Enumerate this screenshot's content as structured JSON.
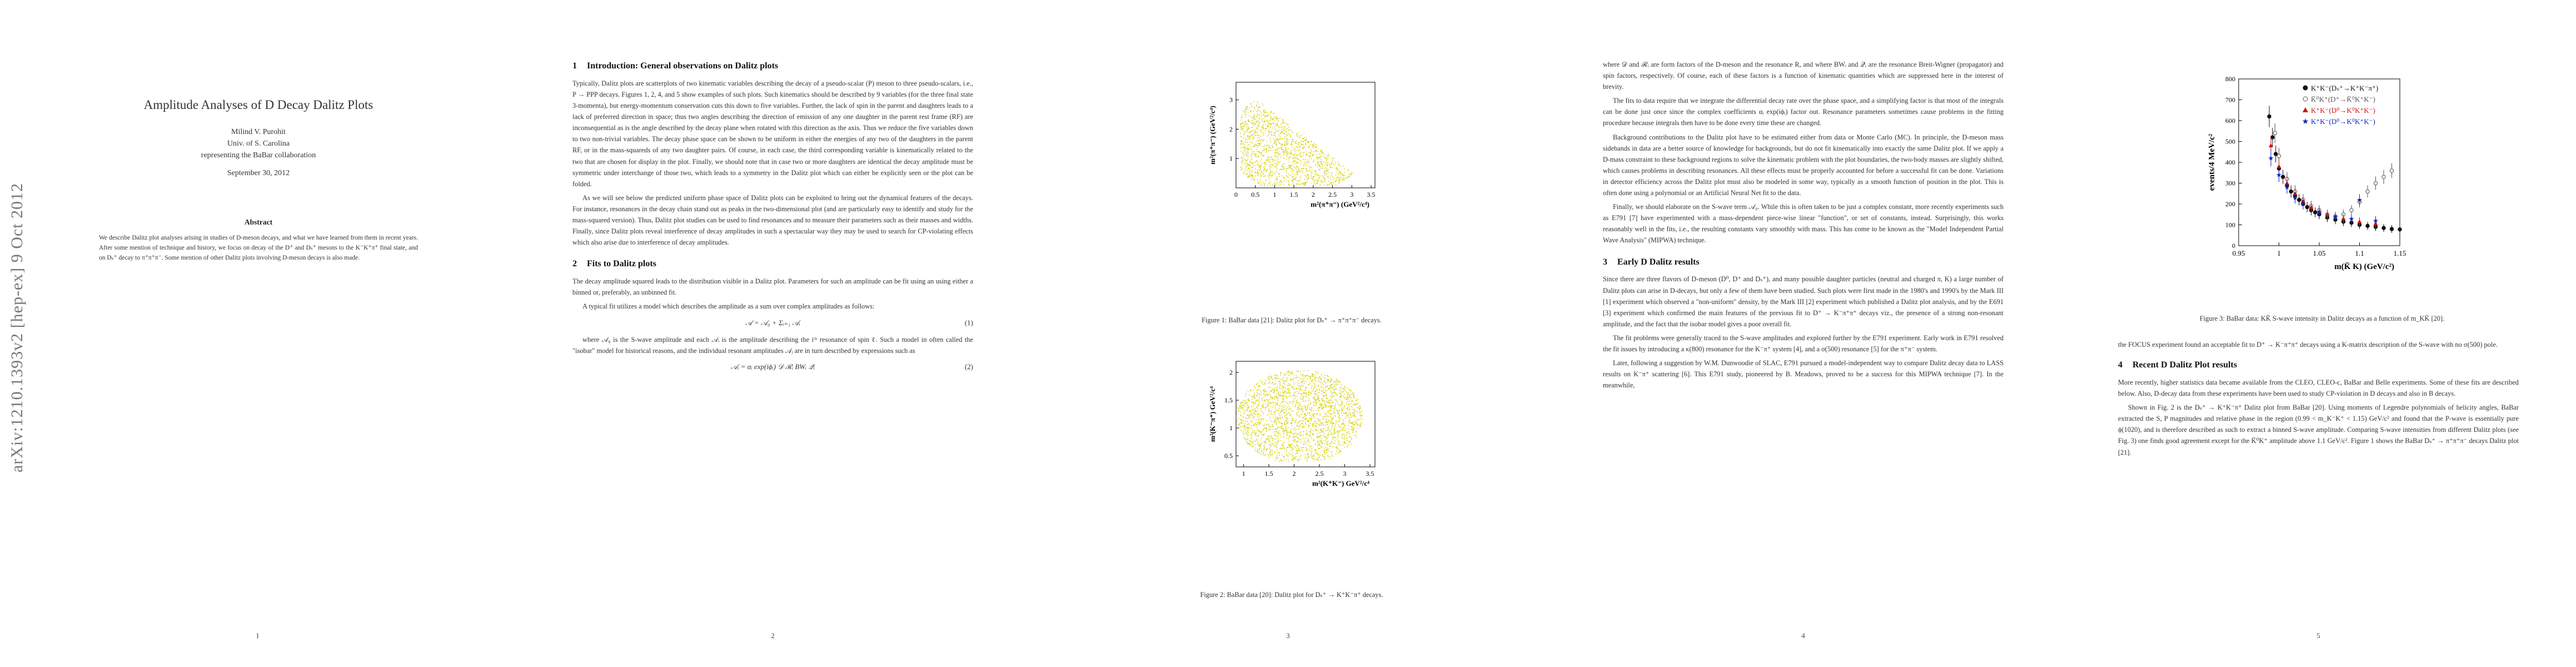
{
  "arxiv_stamp": "arXiv:1210.1393v2  [hep-ex]  9 Oct 2012",
  "title": "Amplitude Analyses of D Decay Dalitz Plots",
  "author": "Milind V. Purohit",
  "affiliation": "Univ. of S. Carolina",
  "collaboration": "representing the BaBar collaboration",
  "date": "September 30, 2012",
  "abstract_heading": "Abstract",
  "abstract_text": "We describe Dalitz plot analyses arising in studies of D-meson decays, and what we have learned from them in recent years. After some mention of technique and history, we focus on decay of the D⁺ and Dₛ⁺ mesons to the K⁻K⁺π⁺ final state, and on Dₛ⁺ decay to π⁺π⁺π⁻. Some mention of other Dalitz plots involving D-meson decays is also made.",
  "page_numbers": [
    "1",
    "2",
    "3",
    "4",
    "5"
  ],
  "page2": {
    "sec1_num": "1",
    "sec1_title": "Introduction: General observations on Dalitz plots",
    "p1": "Typically, Dalitz plots are scatterplots of two kinematic variables describing the decay of a pseudo-scalar (P) meson to three pseudo-scalars, i.e., P → PPP decays. Figures 1, 2, 4, and 5 show examples of such plots. Such kinematics should be described by 9 variables (for the three final state 3-momenta), but energy-momentum conservation cuts this down to five variables. Further, the lack of spin in the parent and daughters leads to a lack of preferred direction in space; thus two angles describing the direction of emission of any one daughter in the parent rest frame (RF) are inconsequential as is the angle described by the decay plane when rotated with this direction as the axis. Thus we reduce the five variables down to two non-trivial variables. The decay phase space can be shown to be uniform in either the energies of any two of the daughters in the parent RF, or in the mass-squareds of any two daughter pairs. Of course, in each case, the third corresponding variable is kinematically related to the two that are chosen for display in the plot. Finally, we should note that in case two or more daughters are identical the decay amplitude must be symmetric under interchange of those two, which leads to a symmetry in the Dalitz plot which can either be explicitly seen or the plot can be folded.",
    "p2": "As we will see below the predicted uniform phase space of Dalitz plots can be exploited to bring out the dynamical features of the decays. For instance, resonances in the decay chain stand out as peaks in the two-dimensional plot (and are particularly easy to identify and study for the mass-squared version). Thus, Dalitz plot studies can be used to find resonances and to measure their parameters such as their masses and widths. Finally, since Dalitz plots reveal interference of decay amplitudes in such a spectacular way they may be used to search for CP-violating effects which also arise due to interference of decay amplitudes.",
    "sec2_num": "2",
    "sec2_title": "Fits to Dalitz plots",
    "p3": "The decay amplitude squared leads to the distribution visible in a Dalitz plot. Parameters for such an amplitude can be fit using an using either a binned or, preferably, an unbinned fit.",
    "p4": "A typical fit utilizes a model which describes the amplitude as a sum over complex amplitudes as follows:",
    "eq1": "𝒜 = 𝒜₀ + Σᵢ₌₁ 𝒜ᵢ",
    "eq1_no": "(1)",
    "p5": "where 𝒜₀ is the S-wave amplitude and each 𝒜ᵢ is the amplitude describing the iᵗʰ resonance of spin ℓ. Such a model in often called the \"isobar\" model for historical reasons, and the individual resonant amplitudes 𝒜ᵢ are in turn described by expressions such as",
    "eq2": "𝒜ᵢ = αᵢ exp(iϕᵢ) 𝒟 ℛᵢ BWᵢ 𝒬ᵢ",
    "eq2_no": "(2)"
  },
  "page3": {
    "fig1_caption": "Figure 1: BaBar data [21]: Dalitz plot for Dₛ⁺ → π⁺π⁺π⁻ decays.",
    "fig1_xlabel": "m²(π⁺π⁻) (GeV²/c⁴)",
    "fig1_ylabel": "m²(π⁺π⁻) (GeV²/c⁴)",
    "fig1_xticks": [
      "0",
      "0.5",
      "1",
      "1.5",
      "2",
      "2.5",
      "3",
      "3.5"
    ],
    "fig1_yticks": [
      "1",
      "2",
      "3"
    ],
    "fig2_caption": "Figure 2: BaBar data [20]: Dalitz plot for Dₛ⁺ → K⁺K⁻π⁺ decays.",
    "fig2_xlabel": "m²(K⁺K⁻) GeV²/c⁴",
    "fig2_ylabel": "m²(K⁻π⁺) GeV²/c⁴",
    "fig2_xticks": [
      "1",
      "1.5",
      "2",
      "2.5",
      "3",
      "3.5"
    ],
    "fig2_yticks": [
      "0.5",
      "1",
      "1.5",
      "2"
    ],
    "plot_color": "#d8d20a"
  },
  "page4": {
    "p1": "where 𝒟 and ℛᵢ are form factors of the D-meson and the resonance R, and where BWᵢ and 𝒬ᵢ are the resonance Breit-Wigner (propagator) and spin factors, respectively. Of course, each of these factors is a function of kinematic quantities which are suppressed here in the interest of brevity.",
    "p2": "The fits to data require that we integrate the differential decay rate over the phase space, and a simplifying factor is that most of the integrals can be done just once since the complex coefficients αᵢ exp(iϕᵢ) factor out. Resonance parameters sometimes cause problems in the fitting procedure because integrals then have to be done every time these are changed.",
    "p3": "Background contributions to the Dalitz plot have to be estimated either from data or Monte Carlo (MC). In principle, the D-meson mass sidebands in data are a better source of knowledge for backgrounds, but do not fit kinematically into exactly the same Dalitz plot. If we apply a D-mass constraint to these background regions to solve the kinematic problem with the plot boundaries, the two-body masses are slightly shifted, which causes problems in describing resonances. All these effects must be properly accounted for before a successful fit can be done. Variations in detector efficiency across the Dalitz plot must also be modeled in some way, typically as a smooth function of position in the plot. This is often done using a polynomial or an Artificial Neural Net fit to the data.",
    "p4": "Finally, we should elaborate on the S-wave term 𝒜₀. While this is often taken to be just a complex constant, more recently experiments such as E791 [7] have experimented with a mass-dependent piece-wise linear \"function\", or set of constants, instead. Surprisingly, this works reasonably well in the fits, i.e., the resulting constants vary smoothly with mass. This has come to be known as the \"Model Independent Partial Wave Analysis\" (MIPWA) technique.",
    "sec3_num": "3",
    "sec3_title": "Early D Dalitz results",
    "p5": "Since there are three flavors of D-meson (D⁰, D⁺ and Dₛ⁺), and many possible daughter particles (neutral and charged π, K) a large number of Dalitz plots can arise in D-decays, but only a few of them have been studied. Such plots were first made in the 1980's and 1990's by the Mark III [1] experiment which observed a \"non-uniform\" density, by the Mark III [2] experiment which published a Dalitz plot analysis, and by the E691 [3] experiment which confirmed the main features of the previous fit to D⁺ → K⁻π⁺π⁺ decays viz., the presence of a strong non-resonant amplitude, and the fact that the isobar model gives a poor overall fit.",
    "p6": "The fit problems were generally traced to the S-wave amplitudes and explored further by the E791 experiment. Early work in E791 resolved the fit issues by introducing a κ(800) resonance for the K⁻π⁺ system [4], and a σ(500) resonance [5] for the π⁺π⁻ system.",
    "p7": "Later, following a suggestion by W.M. Dunwoodie of SLAC, E791 pursued a model-independent way to compare Dalitz decay data to LASS results on K⁻π⁺ scattering [6]. This E791 study, pioneered by B. Meadows, proved to be a success for this MIPWA technique [7]. In the meanwhile,"
  },
  "page5": {
    "fig3_caption": "Figure 3: BaBar data: KK̄ S-wave intensity in Dalitz decays as a function of m_KK̄ [20].",
    "p1": "the FOCUS experiment found an acceptable fit to D⁺ → K⁻π⁺π⁺ decays using a K-matrix description of the S-wave with no σ(500) pole.",
    "sec4_num": "4",
    "sec4_title": "Recent D Dalitz Plot results",
    "p2": "More recently, higher statistics data became available from the CLEO, CLEO-c, BaBar and Belle experiments. Some of these fits are described below. Also, D-decay data from these experiments have been used to study CP-violation in D decays and also in B decays.",
    "p3": "Shown in Fig. 2 is the Dₛ⁺ → K⁺K⁻π⁺ Dalitz plot from BaBar [20]. Using moments of Legendre polynomials of helicity angles, BaBar extracted the S, P magnitudes and relative phase in the region (0.99 < m_K⁻K⁺ < 1.15) GeV/c² and found that the P-wave is essentially pure ϕ(1020), and is therefore described as such to extract a binned S-wave amplitude. Comparing S-wave intensities from different Dalitz plots (see Fig. 3) one finds good agreement except for the K̄⁰K⁺ amplitude above 1.1 GeV/c². Figure 1 shows the BaBar Dₛ⁺ → π⁺π⁺π⁻ decays Dalitz plot [21]."
  },
  "chart_data": [
    {
      "type": "scatter",
      "title": "",
      "xlabel": "m²(π⁺π⁻) (GeV²/c⁴)",
      "ylabel": "m²(π⁺π⁻) (GeV²/c⁴)",
      "xlim": [
        0,
        3.6
      ],
      "ylim": [
        0,
        3.6
      ],
      "note": "Dalitz plot density, D_s+ -> pi+pi+pi-"
    },
    {
      "type": "scatter",
      "title": "",
      "xlabel": "m²(K⁺K⁻) GeV²/c⁴",
      "ylabel": "m²(K⁻π⁺) GeV²/c⁴",
      "xlim": [
        0.85,
        3.6
      ],
      "ylim": [
        0.3,
        2.2
      ],
      "note": "Dalitz plot density, D_s+ -> K+K-pi+"
    },
    {
      "type": "scatter",
      "title": "",
      "xlabel": "m(K̄ K) (GeV/c²)",
      "ylabel": "events/4 MeV/c²",
      "xlim": [
        0.95,
        1.15
      ],
      "ylim": [
        0,
        800
      ],
      "xticks": [
        "0.95",
        "1",
        "1.05",
        "1.1",
        "1.15"
      ],
      "yticks": [
        "0",
        "100",
        "200",
        "300",
        "400",
        "500",
        "600",
        "700",
        "800"
      ],
      "series": [
        {
          "name": "K⁺K⁻(Dₛ⁺→K⁺K⁻π⁺)",
          "color": "#111111",
          "x": [
            0.988,
            0.992,
            0.996,
            1.0,
            1.005,
            1.01,
            1.015,
            1.02,
            1.025,
            1.03,
            1.035,
            1.04,
            1.045,
            1.05,
            1.06,
            1.07,
            1.08,
            1.09,
            1.1,
            1.11,
            1.12,
            1.13,
            1.14,
            1.15
          ],
          "y": [
            620,
            520,
            440,
            370,
            330,
            290,
            260,
            240,
            220,
            200,
            185,
            170,
            160,
            150,
            135,
            125,
            115,
            110,
            100,
            95,
            90,
            85,
            80,
            78
          ]
        },
        {
          "name": "K̄⁰K⁺(D⁺→K̄⁰K⁺K⁻)",
          "color": "#555555",
          "x": [
            0.995,
            1.0,
            1.01,
            1.02,
            1.03,
            1.04,
            1.05,
            1.06,
            1.07,
            1.08,
            1.09,
            1.1,
            1.11,
            1.12,
            1.13,
            1.14
          ],
          "y": [
            540,
            430,
            320,
            260,
            220,
            190,
            170,
            150,
            140,
            150,
            170,
            210,
            260,
            300,
            330,
            360
          ]
        },
        {
          "name": "K⁺K⁻(D⁰→K⁰K⁺K⁻)",
          "color": "#d01010",
          "x": [
            0.99,
            1.0,
            1.01,
            1.02,
            1.03,
            1.04,
            1.05,
            1.06,
            1.08,
            1.1,
            1.12
          ],
          "y": [
            480,
            380,
            300,
            250,
            215,
            185,
            165,
            150,
            130,
            115,
            105
          ]
        },
        {
          "name": "K⁺K⁻(D⁰→K⁰K⁺K⁻)",
          "color": "#1020c8",
          "x": [
            0.99,
            1.0,
            1.01,
            1.02,
            1.03,
            1.05,
            1.07,
            1.09,
            1.1,
            1.12
          ],
          "y": [
            420,
            340,
            280,
            230,
            200,
            160,
            140,
            130,
            220,
            120
          ]
        }
      ],
      "legend_position": "top-right"
    }
  ]
}
